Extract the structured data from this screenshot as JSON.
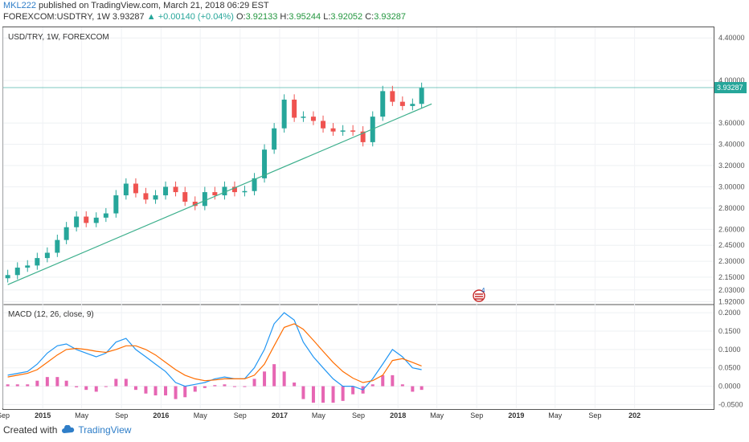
{
  "header": {
    "author": "MKL222",
    "published_text": "published on TradingView.com, March 21, 2018 06:29 EST",
    "symbol": "FOREXCOM:USDTRY, 1W",
    "last": "3.93287",
    "change": "+0.00140 (+0.04%)",
    "o_label": "O:",
    "o_value": "3.92133",
    "h_label": "H:",
    "h_value": "3.95244",
    "l_label": "L:",
    "l_value": "3.92052",
    "c_label": "C:",
    "c_value": "3.93287"
  },
  "footer": {
    "created_with": "Created with",
    "brand": "TradingView"
  },
  "colors": {
    "up": "#26a69a",
    "down": "#ef5350",
    "macd": "#2196f3",
    "signal": "#ff6d00",
    "hist": "#e040a0",
    "trend": "#3caf8c",
    "last_price_bg": "#26a69a"
  },
  "chart_data": [
    {
      "type": "candlestick",
      "title": "USD/TRY, 1W, FOREXCOM",
      "ylim": [
        1.9,
        4.5
      ],
      "y_ticks": [
        "4.40000",
        "4.00000",
        "3.60000",
        "3.40000",
        "3.20000",
        "3.00000",
        "2.80000",
        "2.60000",
        "2.45000",
        "2.30000",
        "2.15000",
        "2.03000",
        "1.92000"
      ],
      "last_price_label": "3.93287",
      "x_ticks": [
        "Sep",
        "2015",
        "May",
        "Sep",
        "2016",
        "May",
        "Sep",
        "2017",
        "May",
        "Sep",
        "2018",
        "May",
        "Sep",
        "2019",
        "May",
        "Sep",
        "202"
      ],
      "close_series": [
        {
          "date": "2014-09",
          "close": 2.17
        },
        {
          "date": "2014-10",
          "close": 2.24
        },
        {
          "date": "2014-11",
          "close": 2.26
        },
        {
          "date": "2014-12",
          "close": 2.33
        },
        {
          "date": "2015-01",
          "close": 2.38
        },
        {
          "date": "2015-02",
          "close": 2.5
        },
        {
          "date": "2015-03",
          "close": 2.62
        },
        {
          "date": "2015-04",
          "close": 2.72
        },
        {
          "date": "2015-05",
          "close": 2.66
        },
        {
          "date": "2015-06",
          "close": 2.71
        },
        {
          "date": "2015-07",
          "close": 2.75
        },
        {
          "date": "2015-08",
          "close": 2.92
        },
        {
          "date": "2015-09",
          "close": 3.03
        },
        {
          "date": "2015-10",
          "close": 2.94
        },
        {
          "date": "2015-11",
          "close": 2.88
        },
        {
          "date": "2015-12",
          "close": 2.92
        },
        {
          "date": "2016-01",
          "close": 3.0
        },
        {
          "date": "2016-02",
          "close": 2.95
        },
        {
          "date": "2016-03",
          "close": 2.86
        },
        {
          "date": "2016-04",
          "close": 2.82
        },
        {
          "date": "2016-05",
          "close": 2.95
        },
        {
          "date": "2016-06",
          "close": 2.92
        },
        {
          "date": "2016-07",
          "close": 3.0
        },
        {
          "date": "2016-08",
          "close": 2.95
        },
        {
          "date": "2016-09",
          "close": 2.96
        },
        {
          "date": "2016-10",
          "close": 3.08
        },
        {
          "date": "2016-11",
          "close": 3.35
        },
        {
          "date": "2016-12",
          "close": 3.55
        },
        {
          "date": "2017-01",
          "close": 3.82
        },
        {
          "date": "2017-02",
          "close": 3.65
        },
        {
          "date": "2017-03",
          "close": 3.66
        },
        {
          "date": "2017-04",
          "close": 3.62
        },
        {
          "date": "2017-05",
          "close": 3.55
        },
        {
          "date": "2017-06",
          "close": 3.52
        },
        {
          "date": "2017-07",
          "close": 3.53
        },
        {
          "date": "2017-08",
          "close": 3.52
        },
        {
          "date": "2017-09",
          "close": 3.42
        },
        {
          "date": "2017-10",
          "close": 3.66
        },
        {
          "date": "2017-11",
          "close": 3.9
        },
        {
          "date": "2017-12",
          "close": 3.8
        },
        {
          "date": "2018-01",
          "close": 3.76
        },
        {
          "date": "2018-02",
          "close": 3.78
        },
        {
          "date": "2018-03",
          "close": 3.93
        }
      ],
      "trendline": [
        {
          "date": "2014-09",
          "value": 2.08
        },
        {
          "date": "2018-04",
          "value": 3.78
        }
      ]
    },
    {
      "type": "line",
      "title": "MACD (12, 26, close, 9)",
      "ylim": [
        -0.06,
        0.22
      ],
      "y_ticks": [
        "0.2000",
        "0.1500",
        "0.1000",
        "0.0500",
        "0.0000",
        "-0.0500"
      ],
      "series": [
        {
          "name": "MACD",
          "values": [
            0.03,
            0.035,
            0.04,
            0.06,
            0.09,
            0.11,
            0.115,
            0.1,
            0.09,
            0.08,
            0.09,
            0.12,
            0.13,
            0.1,
            0.08,
            0.06,
            0.04,
            0.01,
            0.0,
            0.005,
            0.01,
            0.02,
            0.025,
            0.02,
            0.02,
            0.05,
            0.1,
            0.17,
            0.2,
            0.18,
            0.12,
            0.08,
            0.05,
            0.02,
            0.0,
            0.0,
            -0.01,
            0.02,
            0.06,
            0.1,
            0.08,
            0.05,
            0.045
          ]
        },
        {
          "name": "Signal",
          "values": [
            0.025,
            0.03,
            0.035,
            0.045,
            0.065,
            0.085,
            0.1,
            0.103,
            0.1,
            0.095,
            0.092,
            0.1,
            0.11,
            0.11,
            0.1,
            0.085,
            0.065,
            0.045,
            0.03,
            0.02,
            0.015,
            0.017,
            0.02,
            0.02,
            0.02,
            0.03,
            0.06,
            0.11,
            0.16,
            0.17,
            0.155,
            0.125,
            0.095,
            0.065,
            0.04,
            0.022,
            0.01,
            0.015,
            0.03,
            0.07,
            0.075,
            0.065,
            0.055
          ]
        }
      ]
    }
  ]
}
